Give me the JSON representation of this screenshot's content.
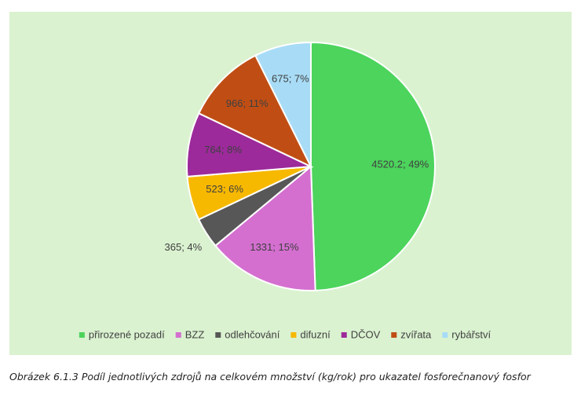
{
  "chart_data": {
    "type": "pie",
    "categories": [
      "přirozené pozadí",
      "BZZ",
      "odlehčování",
      "difuzní",
      "DČOV",
      "zvířata",
      "rybářství"
    ],
    "values": [
      4520.2,
      1331,
      365,
      523,
      764,
      966,
      675
    ],
    "value_labels": [
      "4520.2; 49%",
      "1331; 15%",
      "365; 4%",
      "523; 6%",
      "764; 8%",
      "966; 11%",
      "675; 7%"
    ],
    "colors": [
      "#4cd45c",
      "#d46fd0",
      "#575757",
      "#f7b800",
      "#9c2a9a",
      "#c04e14",
      "#a8dcf6"
    ],
    "legend": "bottom"
  },
  "caption": "Obrázek 6.1.3 Podíl jednotlivých zdrojů na celkovém množství (kg/rok) pro ukazatel fosforečnanový fosfor"
}
